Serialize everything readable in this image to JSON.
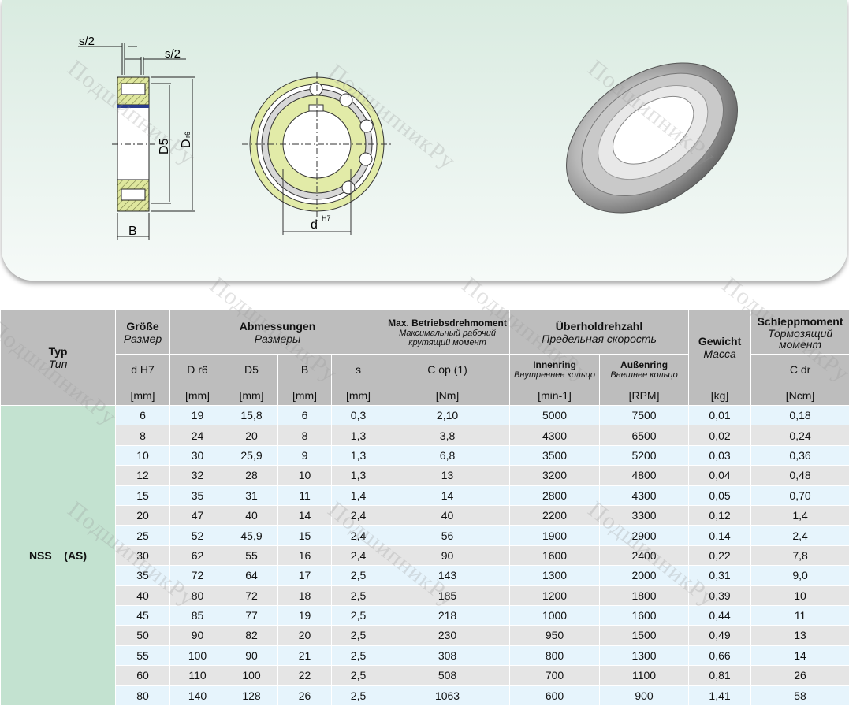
{
  "watermark": "ПодшипникРу",
  "drawing": {
    "labels": {
      "s_half_top": "s/2",
      "s_half_right": "s/2",
      "d5": "D5",
      "dr6_main": "D",
      "dr6_sub": "r6",
      "b": "B",
      "dh7_main": "d",
      "dh7_sup": "H7"
    },
    "colors": {
      "ring": "#e2eba8",
      "hatch": "#c8cf80",
      "seal": "#2a3c8c",
      "background": "#e0efe6"
    }
  },
  "table": {
    "headers": {
      "typ": {
        "de": "Typ",
        "ru": "Тип"
      },
      "groesse": {
        "de": "Größe",
        "ru": "Размер"
      },
      "abmessungen": {
        "de": "Abmessungen",
        "ru": "Размеры"
      },
      "drehmoment": {
        "de": "Max. Betriebsdrehmoment",
        "ru1": "Максимальный рабочий",
        "ru2": "крутящий момент"
      },
      "drehzahl": {
        "de": "Überholdrehzahl",
        "ru": "Предельная скорость"
      },
      "gewicht": {
        "de": "Gewicht",
        "ru": "Масса"
      },
      "schlepp": {
        "de": "Schleppmoment",
        "ru1": "Тормозящий",
        "ru2": "момент"
      },
      "sub": {
        "dh7": "d H7",
        "dr6": "D r6",
        "d5": "D5",
        "b": "B",
        "s": "s",
        "cop": "C op (1)",
        "inner_de": "Innenring",
        "inner_ru": "Внутреннее кольцо",
        "outer_de": "Außenring",
        "outer_ru": "Внешнее кольцо",
        "cdr": "C dr"
      },
      "units": [
        "[mm]",
        "[mm]",
        "[mm]",
        "[mm]",
        "[mm]",
        "[Nm]",
        "[min-1]",
        "[RPM]",
        "[kg]",
        "[Ncm]"
      ]
    },
    "type_name": "NSS    (AS)",
    "rows": [
      [
        "6",
        "19",
        "15,8",
        "6",
        "0,3",
        "2,10",
        "5000",
        "7500",
        "0,01",
        "0,18"
      ],
      [
        "8",
        "24",
        "20",
        "8",
        "1,3",
        "3,8",
        "4300",
        "6500",
        "0,02",
        "0,24"
      ],
      [
        "10",
        "30",
        "25,9",
        "9",
        "1,3",
        "6,8",
        "3500",
        "5200",
        "0,03",
        "0,36"
      ],
      [
        "12",
        "32",
        "28",
        "10",
        "1,3",
        "13",
        "3200",
        "4800",
        "0,04",
        "0,48"
      ],
      [
        "15",
        "35",
        "31",
        "11",
        "1,4",
        "14",
        "2800",
        "4300",
        "0,05",
        "0,70"
      ],
      [
        "20",
        "47",
        "40",
        "14",
        "2,4",
        "40",
        "2200",
        "3300",
        "0,12",
        "1,4"
      ],
      [
        "25",
        "52",
        "45,9",
        "15",
        "2,4",
        "56",
        "1900",
        "2900",
        "0,14",
        "2,4"
      ],
      [
        "30",
        "62",
        "55",
        "16",
        "2,4",
        "90",
        "1600",
        "2400",
        "0,22",
        "7,8"
      ],
      [
        "35",
        "72",
        "64",
        "17",
        "2,5",
        "143",
        "1300",
        "2000",
        "0,31",
        "9,0"
      ],
      [
        "40",
        "80",
        "72",
        "18",
        "2,5",
        "185",
        "1200",
        "1800",
        "0,39",
        "10"
      ],
      [
        "45",
        "85",
        "77",
        "19",
        "2,5",
        "218",
        "1000",
        "1600",
        "0,44",
        "11"
      ],
      [
        "50",
        "90",
        "82",
        "20",
        "2,5",
        "230",
        "950",
        "1500",
        "0,49",
        "13"
      ],
      [
        "55",
        "100",
        "90",
        "21",
        "2,5",
        "308",
        "800",
        "1300",
        "0,66",
        "14"
      ],
      [
        "60",
        "110",
        "100",
        "22",
        "2,5",
        "508",
        "700",
        "1100",
        "0,81",
        "26"
      ],
      [
        "80",
        "140",
        "128",
        "26",
        "2,5",
        "1063",
        "600",
        "900",
        "1,41",
        "58"
      ]
    ]
  }
}
